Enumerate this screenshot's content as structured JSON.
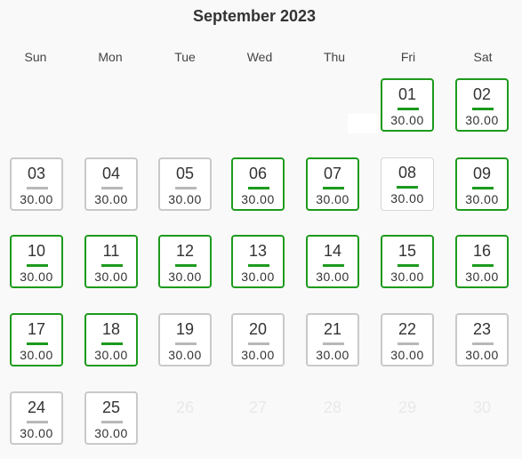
{
  "calendar": {
    "title": "September 2023",
    "weekdays": [
      "Sun",
      "Mon",
      "Tue",
      "Wed",
      "Thu",
      "Fri",
      "Sat"
    ],
    "days": [
      {
        "day": "01",
        "price": "30.00",
        "status": "available"
      },
      {
        "day": "02",
        "price": "30.00",
        "status": "available"
      },
      {
        "day": "03",
        "price": "30.00",
        "status": "unavailable"
      },
      {
        "day": "04",
        "price": "30.00",
        "status": "unavailable"
      },
      {
        "day": "05",
        "price": "30.00",
        "status": "unavailable"
      },
      {
        "day": "06",
        "price": "30.00",
        "status": "available"
      },
      {
        "day": "07",
        "price": "30.00",
        "status": "available"
      },
      {
        "day": "08",
        "price": "30.00",
        "status": "selected-light"
      },
      {
        "day": "09",
        "price": "30.00",
        "status": "available"
      },
      {
        "day": "10",
        "price": "30.00",
        "status": "available"
      },
      {
        "day": "11",
        "price": "30.00",
        "status": "available"
      },
      {
        "day": "12",
        "price": "30.00",
        "status": "available"
      },
      {
        "day": "13",
        "price": "30.00",
        "status": "available"
      },
      {
        "day": "14",
        "price": "30.00",
        "status": "available"
      },
      {
        "day": "15",
        "price": "30.00",
        "status": "available"
      },
      {
        "day": "16",
        "price": "30.00",
        "status": "available"
      },
      {
        "day": "17",
        "price": "30.00",
        "status": "available"
      },
      {
        "day": "18",
        "price": "30.00",
        "status": "available"
      },
      {
        "day": "19",
        "price": "30.00",
        "status": "unavailable"
      },
      {
        "day": "20",
        "price": "30.00",
        "status": "unavailable"
      },
      {
        "day": "21",
        "price": "30.00",
        "status": "unavailable"
      },
      {
        "day": "22",
        "price": "30.00",
        "status": "unavailable"
      },
      {
        "day": "23",
        "price": "30.00",
        "status": "unavailable"
      },
      {
        "day": "24",
        "price": "30.00",
        "status": "unavailable"
      },
      {
        "day": "25",
        "price": "30.00",
        "status": "unavailable"
      }
    ],
    "disabled_days": [
      "26",
      "27",
      "28",
      "29",
      "30"
    ]
  },
  "colors": {
    "available_border": "#1d9a1d",
    "unavailable_border": "#c9c9c9",
    "disabled_text": "#e9e9e9"
  }
}
